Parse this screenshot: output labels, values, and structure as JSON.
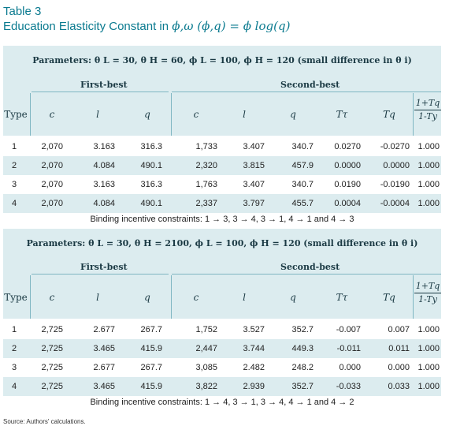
{
  "title": {
    "table_label": "Table 3",
    "caption_text": "Education Elasticity Constant in",
    "caption_math": "ϕ,ω (ϕ,q) = ϕ log(q)"
  },
  "panels": [
    {
      "params": "Parameters: θ L = 30, θ H = 60, ϕ L = 100, ϕ H = 120 (small difference in θ i)",
      "group_first": "First-best",
      "group_second": "Second-best",
      "headers": [
        "Type",
        "c",
        "l",
        "q",
        "c",
        "l",
        "q",
        "Tτ",
        "Tq"
      ],
      "frac_num": "1+Tq",
      "frac_den": "1-Ty",
      "rows": [
        [
          "1",
          "2,070",
          "3.163",
          "316.3",
          "1,733",
          "3.407",
          "340.7",
          "0.0270",
          "-0.0270",
          "1.000"
        ],
        [
          "2",
          "2,070",
          "4.084",
          "490.1",
          "2,320",
          "3.815",
          "457.9",
          "0.0000",
          "0.0000",
          "1.000"
        ],
        [
          "3",
          "2,070",
          "3.163",
          "316.3",
          "1,763",
          "3.407",
          "340.7",
          "0.0190",
          "-0.0190",
          "1.000"
        ],
        [
          "4",
          "2,070",
          "4.084",
          "490.1",
          "2,337",
          "3.797",
          "455.7",
          "0.0004",
          "-0.0004",
          "1.000"
        ]
      ],
      "binding": "Binding incentive constraints: 1 → 3, 3 → 4, 3 → 1, 4 → 1 and 4 → 3"
    },
    {
      "params": "Parameters: θ L = 30, θ H = 2100, ϕ L = 100, ϕ H = 120 (small difference in θ i)",
      "group_first": "First-best",
      "group_second": "Second-best",
      "headers": [
        "Type",
        "c",
        "l",
        "q",
        "c",
        "l",
        "q",
        "Tτ",
        "Tq"
      ],
      "frac_num": "1+Tq",
      "frac_den": "1-Ty",
      "rows": [
        [
          "1",
          "2,725",
          "2.677",
          "267.7",
          "1,752",
          "3.527",
          "352.7",
          "-0.007",
          "0.007",
          "1.000"
        ],
        [
          "2",
          "2,725",
          "3.465",
          "415.9",
          "2,447",
          "3.744",
          "449.3",
          "-0.011",
          "0.011",
          "1.000"
        ],
        [
          "3",
          "2,725",
          "2.677",
          "267.7",
          "3,085",
          "2.482",
          "248.2",
          "0.000",
          "0.000",
          "1.000"
        ],
        [
          "4",
          "2,725",
          "3.465",
          "415.9",
          "3,822",
          "2.939",
          "352.7",
          "-0.033",
          "0.033",
          "1.000"
        ]
      ],
      "binding": "Binding incentive constraints: 1 → 4, 3 → 1, 3 → 4, 4 → 1 and 4 → 2"
    }
  ],
  "source": "Source: Authors' calculations."
}
